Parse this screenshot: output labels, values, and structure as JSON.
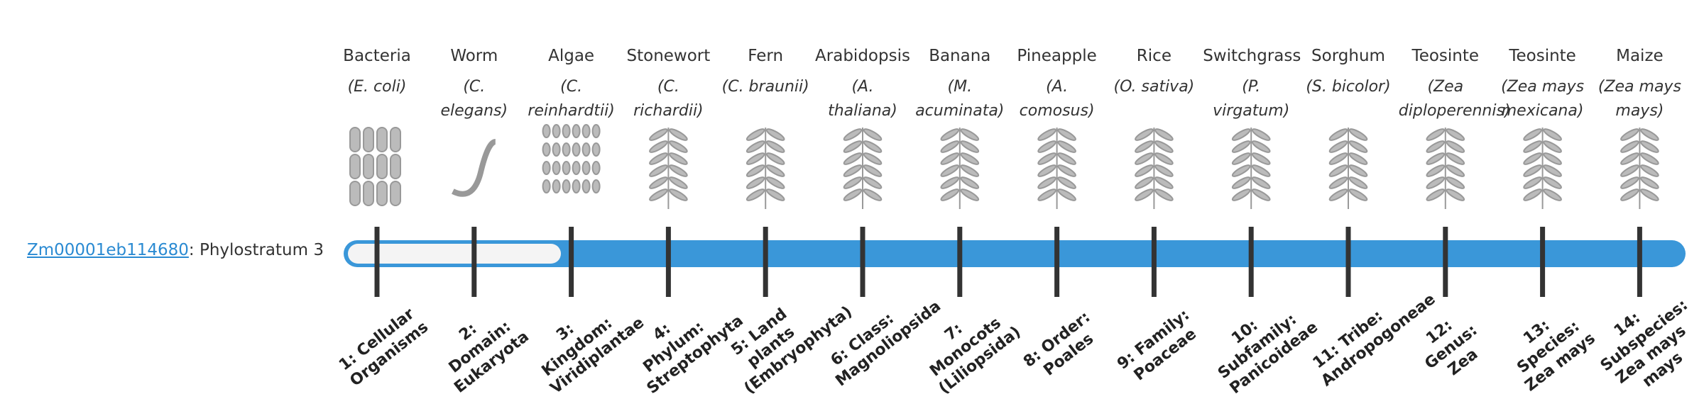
{
  "gene": {
    "id": "Zm00001eb114680",
    "suffix": ": Phylostratum 3"
  },
  "organisms": [
    {
      "name": "Bacteria",
      "species": "(E. coli)"
    },
    {
      "name": "Worm",
      "species": "(C. elegans)"
    },
    {
      "name": "Algae",
      "species": "(C. reinhardtii)"
    },
    {
      "name": "Stonewort",
      "species": "(C. richardii)"
    },
    {
      "name": "Fern",
      "species": "(C. braunii)"
    },
    {
      "name": "Arabidopsis",
      "species": "(A. thaliana)"
    },
    {
      "name": "Banana",
      "species": "(M. acuminata)"
    },
    {
      "name": "Pineapple",
      "species": "(A. comosus)"
    },
    {
      "name": "Rice",
      "species": "(O. sativa)"
    },
    {
      "name": "Switchgrass",
      "species": "(P. virgatum)"
    },
    {
      "name": "Sorghum",
      "species": "(S. bicolor)"
    },
    {
      "name": "Teosinte",
      "species": "(Zea diploperennis)"
    },
    {
      "name": "Teosinte",
      "species": "(Zea mays mexicana)"
    },
    {
      "name": "Maize",
      "species": "(Zea mays mays)"
    }
  ],
  "strata": [
    "1: Cellular Organisms",
    "2: Domain: Eukaryota",
    "3: Kingdom: Viridiplantae",
    "4: Phylum: Streptophyta",
    "5: Land plants (Embryophyta)",
    "6: Class: Magnoliopsida",
    "7: Monocots (Liliopsida)",
    "8: Order: Poales",
    "9: Family: Poaceae",
    "10: Subfamily: Panicoideae",
    "11: Tribe: Andropogoneae",
    "12: Genus: Zea",
    "13: Species: Zea mays",
    "14: Subspecies: Zea mays mays"
  ]
}
